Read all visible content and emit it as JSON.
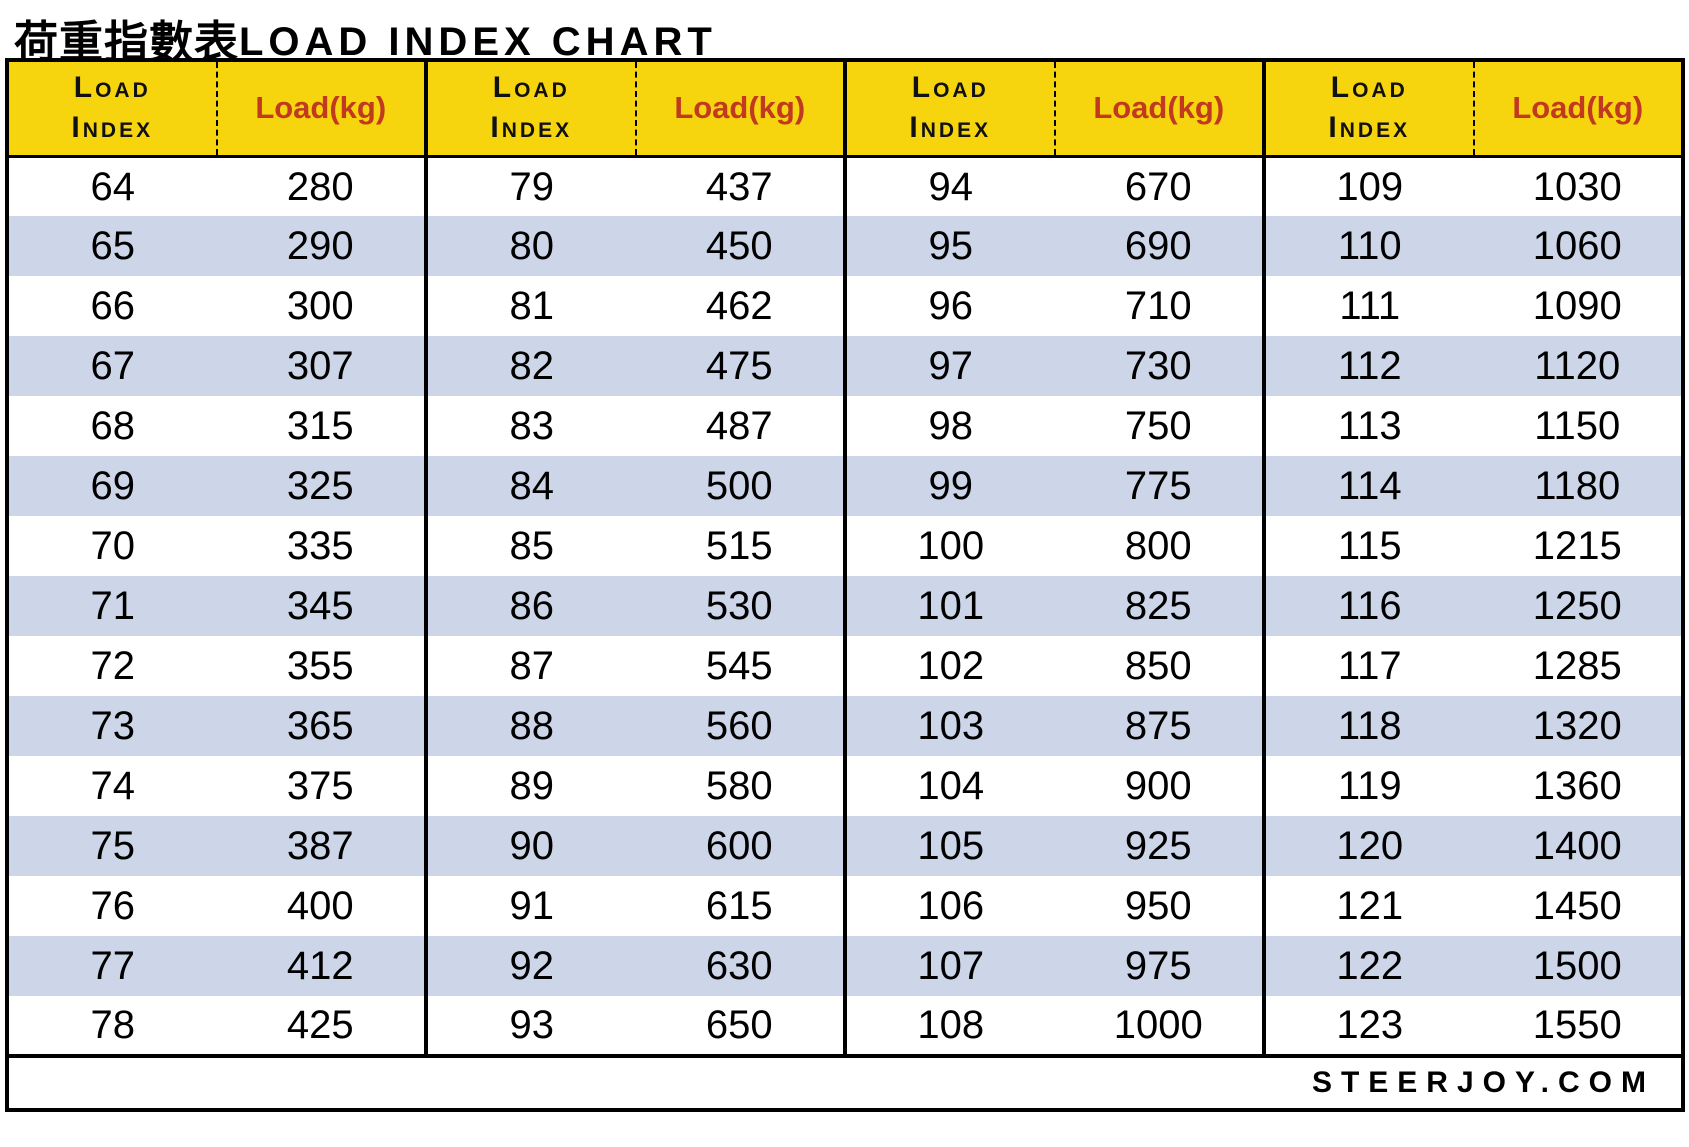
{
  "title": {
    "cjk": "荷重指數表",
    "latin": "LOAD INDEX CHART"
  },
  "header_labels": {
    "load_index": "Load Index",
    "load_kg": "Load(kg)"
  },
  "footer": {
    "site_label": "STEERJOY.COM"
  },
  "colors": {
    "header_bg": "#F6D40E",
    "header_kg_text": "#C1391E",
    "row_stripe": "#CDD5E8",
    "row_plain": "#FFFFFF",
    "border": "#000000"
  },
  "chart_data": {
    "type": "table",
    "title": "荷重指數表 LOAD INDEX CHART",
    "columns_per_group": [
      "Load Index",
      "Load(kg)"
    ],
    "column_group_count": 4,
    "row_striping": "alternating white and light blue rows, yellow header row",
    "groups": [
      {
        "rows": [
          [
            64,
            280
          ],
          [
            65,
            290
          ],
          [
            66,
            300
          ],
          [
            67,
            307
          ],
          [
            68,
            315
          ],
          [
            69,
            325
          ],
          [
            70,
            335
          ],
          [
            71,
            345
          ],
          [
            72,
            355
          ],
          [
            73,
            365
          ],
          [
            74,
            375
          ],
          [
            75,
            387
          ],
          [
            76,
            400
          ],
          [
            77,
            412
          ],
          [
            78,
            425
          ]
        ]
      },
      {
        "rows": [
          [
            79,
            437
          ],
          [
            80,
            450
          ],
          [
            81,
            462
          ],
          [
            82,
            475
          ],
          [
            83,
            487
          ],
          [
            84,
            500
          ],
          [
            85,
            515
          ],
          [
            86,
            530
          ],
          [
            87,
            545
          ],
          [
            88,
            560
          ],
          [
            89,
            580
          ],
          [
            90,
            600
          ],
          [
            91,
            615
          ],
          [
            92,
            630
          ],
          [
            93,
            650
          ]
        ]
      },
      {
        "rows": [
          [
            94,
            670
          ],
          [
            95,
            690
          ],
          [
            96,
            710
          ],
          [
            97,
            730
          ],
          [
            98,
            750
          ],
          [
            99,
            775
          ],
          [
            100,
            800
          ],
          [
            101,
            825
          ],
          [
            102,
            850
          ],
          [
            103,
            875
          ],
          [
            104,
            900
          ],
          [
            105,
            925
          ],
          [
            106,
            950
          ],
          [
            107,
            975
          ],
          [
            108,
            1000
          ]
        ]
      },
      {
        "rows": [
          [
            109,
            1030
          ],
          [
            110,
            1060
          ],
          [
            111,
            1090
          ],
          [
            112,
            1120
          ],
          [
            113,
            1150
          ],
          [
            114,
            1180
          ],
          [
            115,
            1215
          ],
          [
            116,
            1250
          ],
          [
            117,
            1285
          ],
          [
            118,
            1320
          ],
          [
            119,
            1360
          ],
          [
            120,
            1400
          ],
          [
            121,
            1450
          ],
          [
            122,
            1500
          ],
          [
            123,
            1550
          ]
        ]
      }
    ]
  }
}
